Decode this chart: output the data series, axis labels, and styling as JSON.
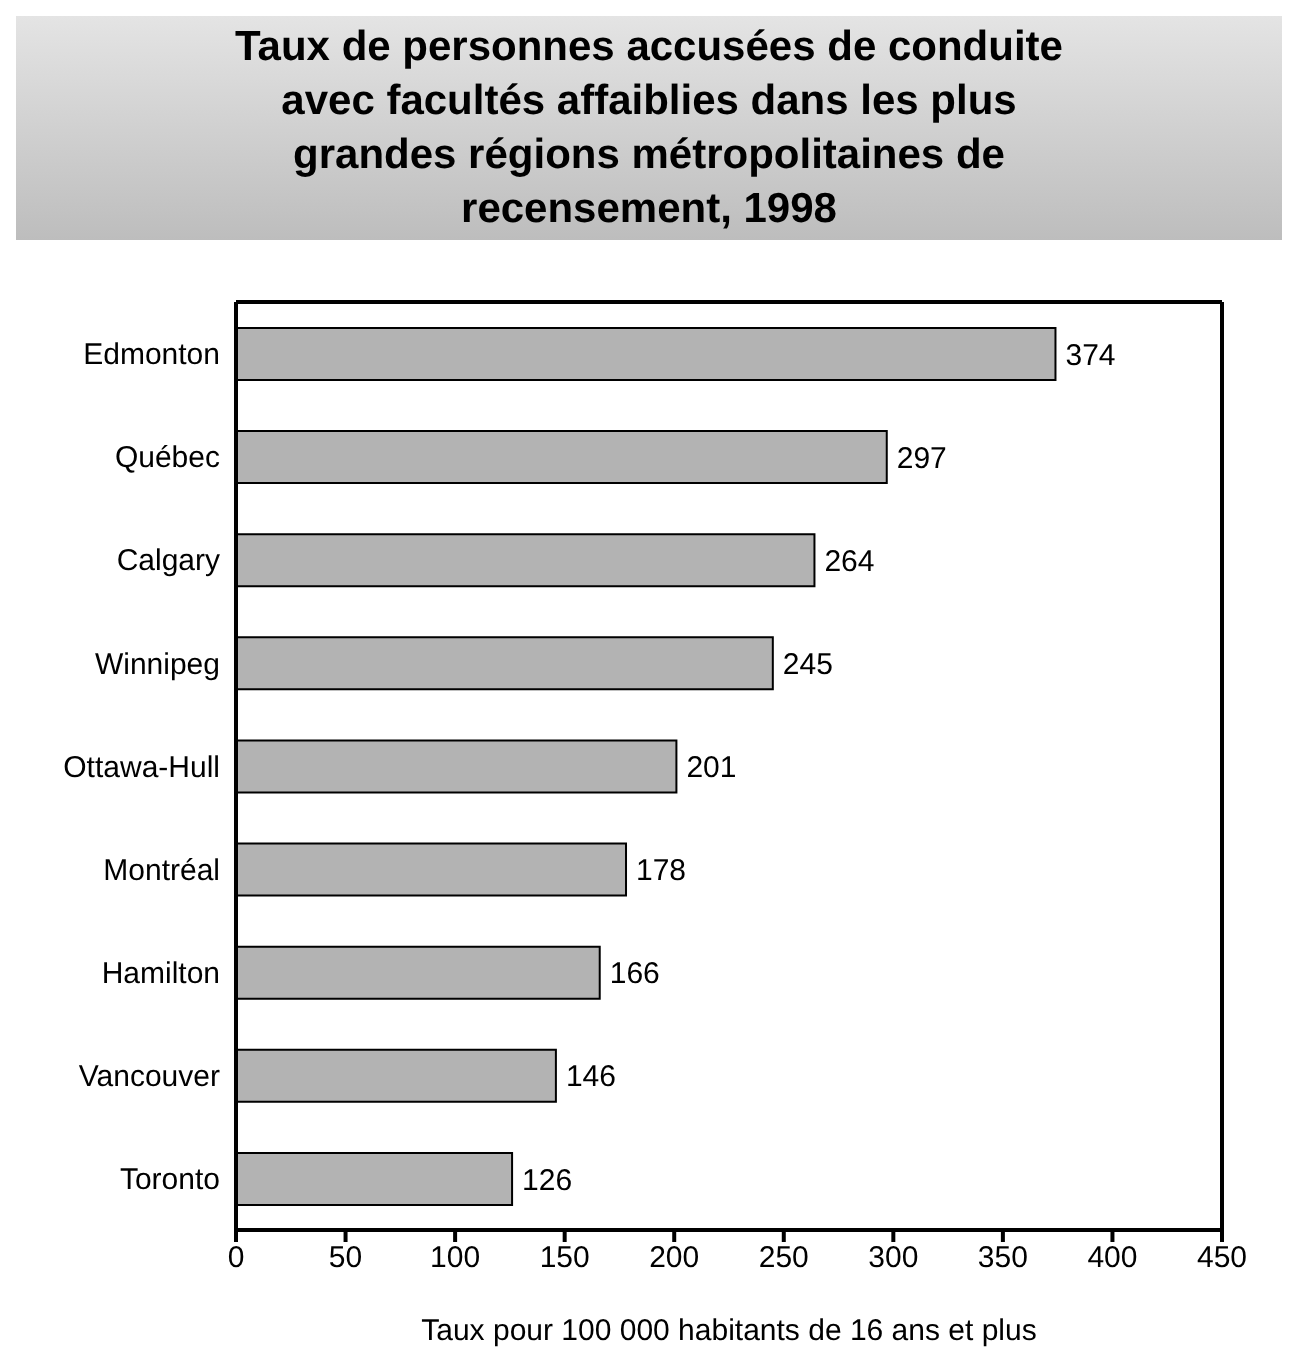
{
  "chart_data": {
    "type": "bar",
    "orientation": "horizontal",
    "title": "Taux de personnes accusées de conduite avec facultés affaiblies dans les plus grandes régions métropolitaines de recensement, 1998",
    "xlabel": "Taux pour 100 000 habitants de 16 ans et plus",
    "categories": [
      "Edmonton",
      "Québec",
      "Calgary",
      "Winnipeg",
      "Ottawa-Hull",
      "Montréal",
      "Hamilton",
      "Vancouver",
      "Toronto"
    ],
    "values": [
      374,
      297,
      264,
      245,
      201,
      178,
      166,
      146,
      126
    ],
    "color": "#b3b3b3",
    "xlim": [
      0,
      450
    ],
    "xticks": [
      0,
      50,
      100,
      150,
      200,
      250,
      300,
      350,
      400,
      450
    ],
    "data_labels": true
  }
}
